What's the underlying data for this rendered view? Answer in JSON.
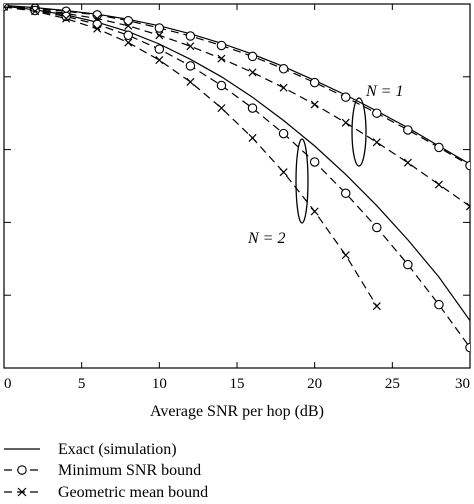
{
  "chart_data": {
    "type": "line",
    "title": "",
    "xlabel": "Average SNR per hop (dB)",
    "ylabel": "",
    "xlim": [
      0,
      30
    ],
    "ylim_log10": [
      -5,
      0
    ],
    "y_scale": "log",
    "grid": false,
    "x_ticks": [
      0,
      5,
      10,
      15,
      20,
      25,
      30
    ],
    "x_tick_labels": [
      "0",
      "5",
      "10",
      "15",
      "20",
      "25",
      "30"
    ],
    "legend": {
      "placement": "bottom",
      "entries": [
        {
          "label": "Exact (simulation)",
          "line": "solid",
          "marker": "none"
        },
        {
          "label": "Minimum SNR bound",
          "line": "dashed",
          "marker": "circle"
        },
        {
          "label": "Geometric mean bound",
          "line": "dashed",
          "marker": "cross"
        }
      ]
    },
    "annotations": [
      {
        "text": "N = 1",
        "group": "N1"
      },
      {
        "text": "N = 2",
        "group": "N2"
      }
    ],
    "series": [
      {
        "label": "Exact (simulation)",
        "group": "N1",
        "line": "solid",
        "marker": "none",
        "x": [
          0,
          2,
          4,
          6,
          8,
          10,
          12,
          14,
          16,
          18,
          20,
          22,
          24,
          26,
          28,
          30
        ],
        "log10_y": [
          -0.02,
          -0.05,
          -0.09,
          -0.14,
          -0.21,
          -0.3,
          -0.41,
          -0.54,
          -0.69,
          -0.86,
          -1.05,
          -1.25,
          -1.47,
          -1.7,
          -1.95,
          -2.2
        ]
      },
      {
        "label": "Minimum SNR bound",
        "group": "N1",
        "line": "dashed",
        "marker": "circle",
        "x": [
          0,
          2,
          4,
          6,
          8,
          10,
          12,
          14,
          16,
          18,
          20,
          22,
          24,
          26,
          28,
          30
        ],
        "log10_y": [
          -0.03,
          -0.06,
          -0.1,
          -0.15,
          -0.23,
          -0.33,
          -0.44,
          -0.57,
          -0.72,
          -0.89,
          -1.08,
          -1.28,
          -1.5,
          -1.73,
          -1.97,
          -2.22
        ]
      },
      {
        "label": "Geometric mean bound",
        "group": "N1",
        "line": "dashed",
        "marker": "cross",
        "x": [
          0,
          2,
          4,
          6,
          8,
          10,
          12,
          14,
          16,
          18,
          20,
          22,
          24,
          26,
          28,
          30
        ],
        "log10_y": [
          -0.03,
          -0.07,
          -0.13,
          -0.2,
          -0.3,
          -0.43,
          -0.58,
          -0.75,
          -0.94,
          -1.15,
          -1.38,
          -1.63,
          -1.9,
          -2.18,
          -2.48,
          -2.78
        ]
      },
      {
        "label": "Exact (simulation)",
        "group": "N2",
        "line": "solid",
        "marker": "none",
        "x": [
          0,
          2,
          4,
          6,
          8,
          10,
          12,
          14,
          16,
          18,
          20,
          22,
          24,
          26,
          28,
          30
        ],
        "log10_y": [
          -0.03,
          -0.08,
          -0.15,
          -0.25,
          -0.38,
          -0.55,
          -0.76,
          -1.0,
          -1.28,
          -1.6,
          -1.95,
          -2.34,
          -2.77,
          -3.24,
          -3.75,
          -4.35
        ]
      },
      {
        "label": "Minimum SNR bound",
        "group": "N2",
        "line": "dashed",
        "marker": "circle",
        "x": [
          0,
          2,
          4,
          6,
          8,
          10,
          12,
          14,
          16,
          18,
          20,
          22,
          24,
          26,
          28,
          30
        ],
        "log10_y": [
          -0.03,
          -0.09,
          -0.17,
          -0.28,
          -0.43,
          -0.62,
          -0.85,
          -1.12,
          -1.43,
          -1.78,
          -2.17,
          -2.6,
          -3.07,
          -3.58,
          -4.13,
          -4.72
        ]
      },
      {
        "label": "Geometric mean bound",
        "group": "N2",
        "line": "dashed",
        "marker": "cross",
        "x": [
          0,
          2,
          4,
          6,
          8,
          10,
          12,
          14,
          16,
          18,
          20,
          22,
          24
        ],
        "log10_y": [
          -0.04,
          -0.1,
          -0.2,
          -0.34,
          -0.53,
          -0.77,
          -1.07,
          -1.43,
          -1.84,
          -2.31,
          -2.85,
          -3.45,
          -4.15
        ]
      }
    ]
  }
}
